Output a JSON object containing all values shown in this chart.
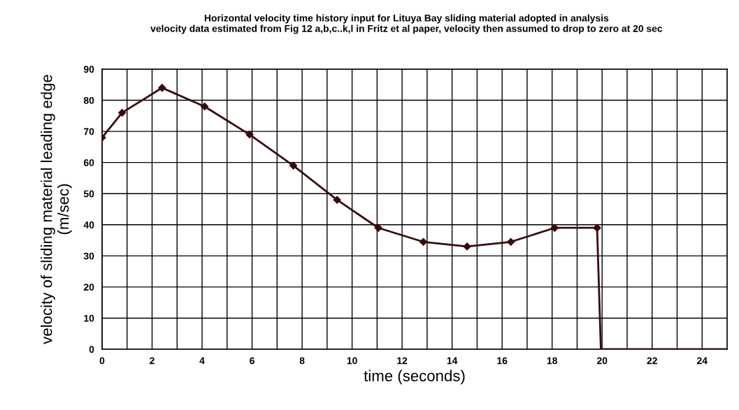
{
  "chart_data": {
    "type": "line",
    "title": "Horizontal velocity time history input for Lituya Bay sliding material adopted in analysis\nvelocity data estimated from Fig 12 a,b,c..k,l in Fritz et al paper, velocity then assumed to drop to zero at 20 sec",
    "xlabel": "time (seconds)",
    "ylabel": "velocity of sliding material leading edge\n(m/sec)",
    "series": [
      {
        "color": "#3a0a0a",
        "marker": "diamond",
        "x": [
          0,
          0.8,
          2.4,
          4.1,
          5.9,
          7.65,
          9.4,
          11.05,
          12.85,
          14.6,
          16.35,
          18.1,
          19.8
        ],
        "values": [
          68,
          76,
          84,
          78,
          69,
          59,
          48,
          39,
          34.5,
          33,
          34.5,
          39,
          39
        ]
      },
      {
        "color": "#3a0a0a",
        "marker": "none",
        "x": [
          19.8,
          19.95,
          25
        ],
        "values": [
          39,
          0,
          0
        ]
      }
    ],
    "xlim": [
      0,
      25
    ],
    "ylim": [
      0,
      90
    ],
    "xticks": [
      0,
      {
        "value": 1,
        "label": null
      },
      2,
      {
        "value": 3,
        "label": null
      },
      4,
      {
        "value": 5,
        "label": null
      },
      6,
      {
        "value": 7,
        "label": null
      },
      8,
      {
        "value": 9,
        "label": null
      },
      10,
      {
        "value": 11,
        "label": null
      },
      12,
      {
        "value": 13,
        "label": null
      },
      14,
      {
        "value": 15,
        "label": null
      },
      16,
      {
        "value": 17,
        "label": null
      },
      18,
      {
        "value": 19,
        "label": null
      },
      20,
      {
        "value": 21,
        "label": null
      },
      22,
      {
        "value": 23,
        "label": null
      },
      24
    ],
    "yticks": [
      0,
      10,
      20,
      30,
      40,
      50,
      60,
      70,
      80,
      90
    ],
    "grid": true,
    "line_style": "solid"
  }
}
